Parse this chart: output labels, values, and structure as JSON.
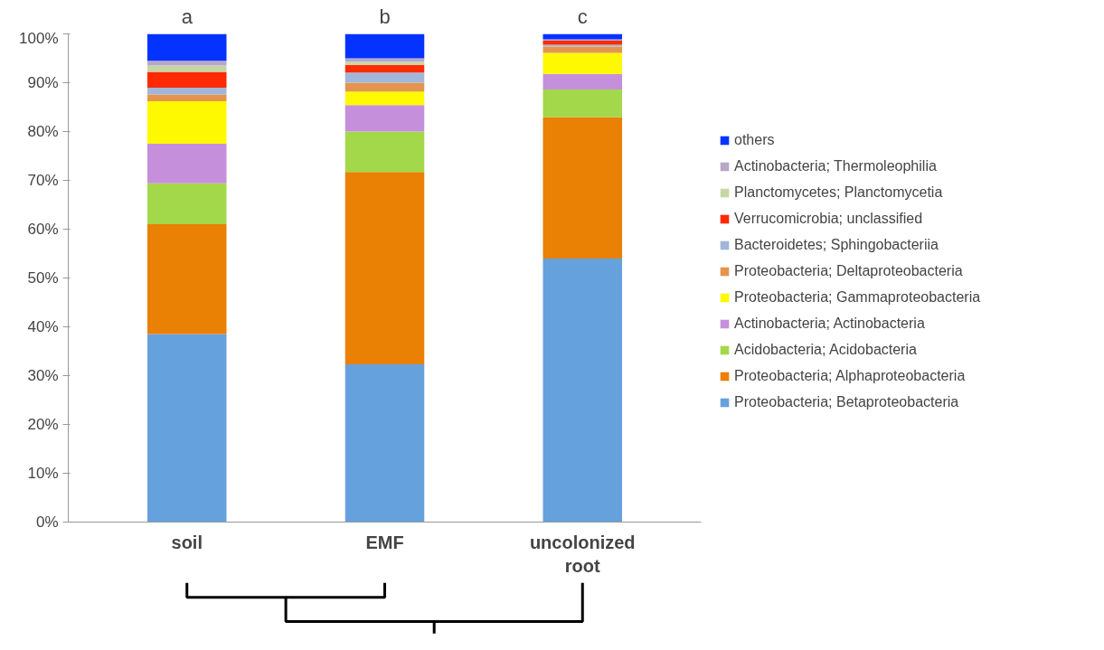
{
  "chart_data": {
    "type": "bar",
    "stacked": true,
    "categories": [
      "soil",
      "EMF",
      "uncolonized root"
    ],
    "ylim": [
      0,
      100
    ],
    "yticks": [
      {
        "value": 0,
        "label": "0%"
      },
      {
        "value": 10,
        "label": "10%"
      },
      {
        "value": 20,
        "label": "20%"
      },
      {
        "value": 30,
        "label": "30%"
      },
      {
        "value": 40,
        "label": "40%"
      },
      {
        "value": 50,
        "label": "50%"
      },
      {
        "value": 60,
        "label": "60%"
      },
      {
        "value": 70,
        "label": "70%"
      },
      {
        "value": 80,
        "label": "80%"
      },
      {
        "value": 90,
        "label": "90%"
      },
      {
        "value": 100,
        "label": "100%"
      }
    ],
    "grid": false,
    "legend": "right",
    "annotations": [
      {
        "text": "a",
        "x": "soil",
        "y": 100
      },
      {
        "text": "b",
        "x": "EMF",
        "y": 100
      },
      {
        "text": "c",
        "x": "uncolonized root",
        "y": 100
      }
    ],
    "series": [
      {
        "name": "Proteobacteria; Betaproteobacteria",
        "color": "#65a1dc",
        "values": [
          38.5,
          32.3,
          54.0
        ]
      },
      {
        "name": "Proteobacteria; Alphaproteobacteria",
        "color": "#ea8004",
        "values": [
          22.5,
          39.4,
          28.9
        ]
      },
      {
        "name": "Acidobacteria; Acidobacteria",
        "color": "#a3d84a",
        "values": [
          8.4,
          8.3,
          5.7
        ]
      },
      {
        "name": "Actinobacteria; Actinobacteria",
        "color": "#c68fdb",
        "values": [
          8.1,
          5.4,
          3.2
        ]
      },
      {
        "name": "Proteobacteria; Gammaproteobacteria",
        "color": "#fef900",
        "values": [
          8.7,
          2.8,
          4.3
        ]
      },
      {
        "name": "Proteobacteria; Deltaproteobacteria",
        "color": "#e3954e",
        "values": [
          1.4,
          1.8,
          1.3
        ]
      },
      {
        "name": "Bacteroidetes; Sphingobacteriia",
        "color": "#a1b6d8",
        "values": [
          1.4,
          2.1,
          0.4
        ]
      },
      {
        "name": "Verrucomicrobia; unclassified",
        "color": "#ff2a00",
        "values": [
          3.2,
          1.5,
          0.8
        ]
      },
      {
        "name": "Planctomycetes; Planctomycetia",
        "color": "#c6d7a5",
        "values": [
          1.3,
          0.7,
          null
        ]
      },
      {
        "name": "Actinobacteria; Thermoleophilia",
        "color": "#b7a8c8",
        "values": [
          1.0,
          0.7,
          0.3
        ]
      },
      {
        "name": "others",
        "color": "#0433ff",
        "values": [
          5.5,
          5.0,
          1.1
        ]
      }
    ]
  }
}
